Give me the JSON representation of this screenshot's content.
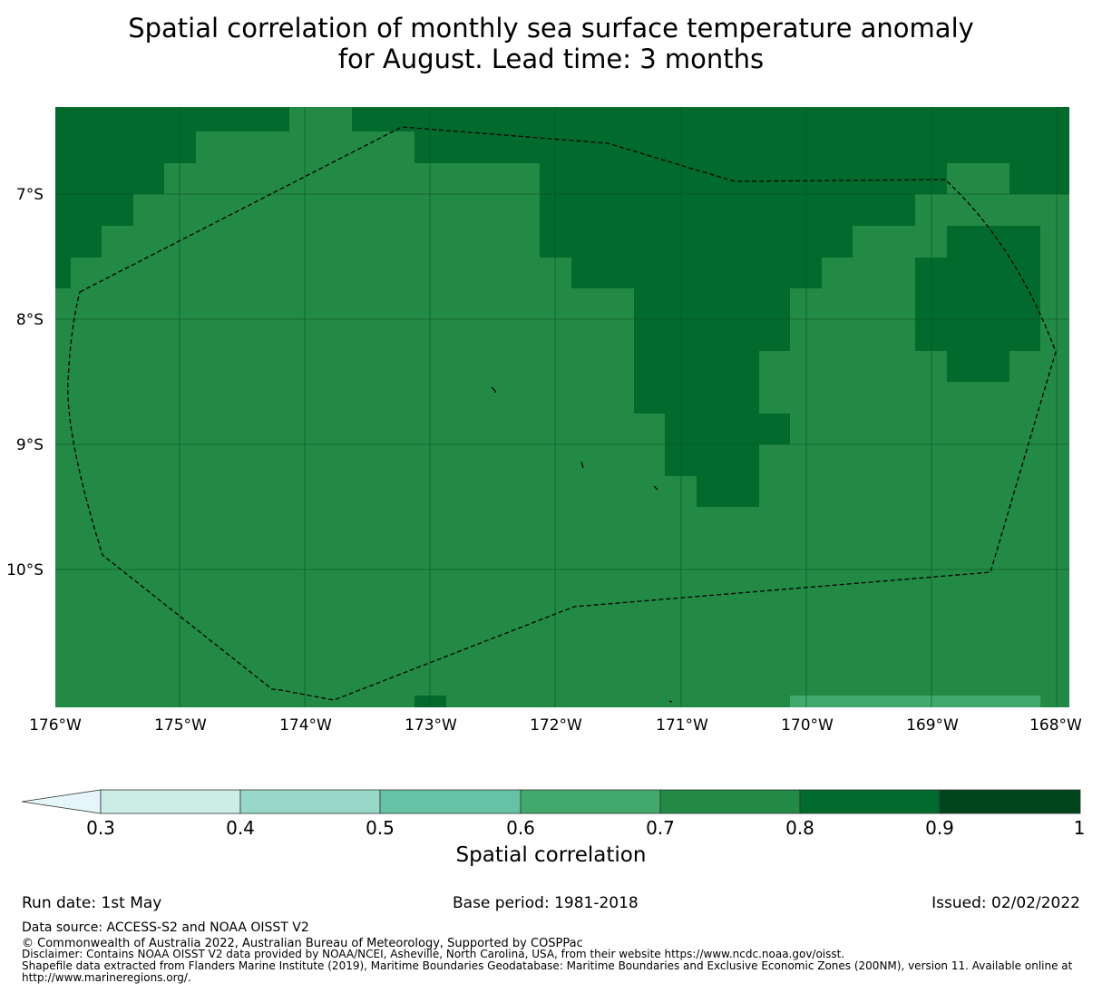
{
  "title": {
    "line1": "Spatial correlation of monthly sea surface temperature anomaly",
    "line2": "for August. Lead time: 3 months"
  },
  "map": {
    "lon_range": [
      -176,
      -168
    ],
    "lat_range": [
      -11.15,
      -6.3
    ],
    "lon_ticks": [
      "176°W",
      "175°W",
      "174°W",
      "173°W",
      "172°W",
      "171°W",
      "170°W",
      "169°W",
      "168°W"
    ],
    "lat_ticks": [
      "7°S",
      "8°S",
      "9°S",
      "10°S"
    ],
    "boundary": "Tokelau exclusive economic zone (200NM)",
    "colors": {
      "0.7-0.8": "#228a45",
      "0.8-0.9": "#006b2d",
      "0.6-0.7": "#40aa6d"
    }
  },
  "colorbar": {
    "label": "Spatial correlation",
    "ticks": [
      "0.3",
      "0.4",
      "0.5",
      "0.6",
      "0.7",
      "0.8",
      "0.9",
      "1"
    ],
    "bins": [
      {
        "range": "<0.3",
        "color": "#e5f5f9"
      },
      {
        "range": "0.3-0.4",
        "color": "#ccece6"
      },
      {
        "range": "0.4-0.5",
        "color": "#99d8c9"
      },
      {
        "range": "0.5-0.6",
        "color": "#66c2a4"
      },
      {
        "range": "0.6-0.7",
        "color": "#40aa6d"
      },
      {
        "range": "0.7-0.8",
        "color": "#228a45"
      },
      {
        "range": "0.8-0.9",
        "color": "#006b2d"
      },
      {
        "range": "0.9-1",
        "color": "#00441b"
      }
    ]
  },
  "footer": {
    "run_date": "Run date: 1st May",
    "base_period": "Base period: 1981-2018",
    "issued": "Issued: 02/02/2022",
    "data_source": "Data source: ACCESS-S2 and NOAA OISST V2",
    "copyright": "© Commonwealth of Australia 2022, Australian Bureau of Meteorology, Supported by COSPPac",
    "disclaimer": "Disclaimer: Contains NOAA OISST V2 data provided by NOAA/NCEI, Asheville, North Carolina, USA, from their website https://www.ncdc.noaa.gov/oisst.",
    "shapefile": "Shapefile data extracted from Flanders Marine Institute (2019), Maritime Boundaries Geodatabase: Maritime Boundaries and Exclusive Economic Zones (200NM), version 11. Available online at http://www.marineregions.org/."
  }
}
